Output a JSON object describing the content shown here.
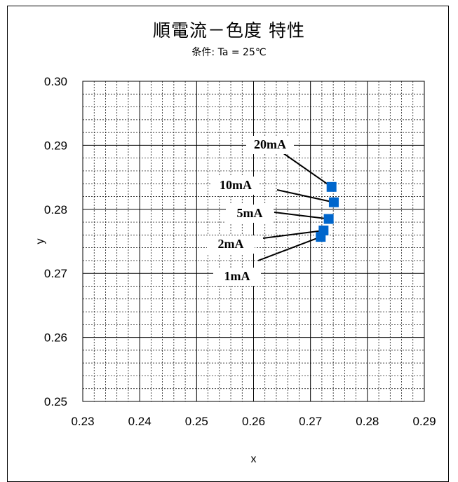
{
  "chart_data": {
    "type": "scatter",
    "title": "順電流－色度 特性",
    "subtitle": "条件: Ta = 25℃",
    "xlabel": "x",
    "ylabel": "y",
    "xlim": [
      0.23,
      0.29
    ],
    "ylim": [
      0.25,
      0.3
    ],
    "x_ticks": [
      "0.23",
      "0.24",
      "0.25",
      "0.26",
      "0.27",
      "0.28",
      "0.29"
    ],
    "y_ticks": [
      "0.25",
      "0.26",
      "0.27",
      "0.28",
      "0.29",
      "0.30"
    ],
    "grid": true,
    "marker_color": "#0066cc",
    "points": [
      {
        "label": "1mA",
        "x": 0.2718,
        "y": 0.2757
      },
      {
        "label": "2mA",
        "x": 0.2723,
        "y": 0.2767
      },
      {
        "label": "5mA",
        "x": 0.2732,
        "y": 0.2785
      },
      {
        "label": "10mA",
        "x": 0.2741,
        "y": 0.2811
      },
      {
        "label": "20mA",
        "x": 0.2737,
        "y": 0.2835
      }
    ]
  }
}
